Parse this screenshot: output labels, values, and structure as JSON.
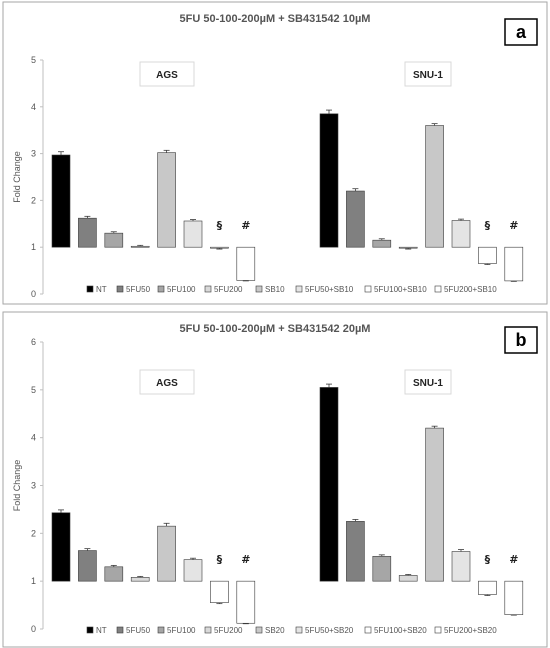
{
  "chart_data": [
    {
      "type": "bar",
      "title": "5FU 50-100-200µM + SB431542 10µM",
      "panel_label": "a",
      "ylabel": "Fold Change",
      "ylim": [
        0,
        5
      ],
      "yticks": [
        "0",
        "1",
        "2",
        "3",
        "4",
        "5"
      ],
      "baseline": 1,
      "grid": false,
      "legend_position": "bottom",
      "groups": [
        "AGS",
        "SNU-1"
      ],
      "series": [
        {
          "name": "NT",
          "color": "#000000",
          "values": [
            2.97,
            3.85
          ],
          "errors": [
            0.07,
            0.08
          ]
        },
        {
          "name": "5FU50",
          "color": "#808080",
          "values": [
            1.62,
            2.2
          ],
          "errors": [
            0.04,
            0.05
          ]
        },
        {
          "name": "5FU100",
          "color": "#a6a6a6",
          "values": [
            1.3,
            1.15
          ],
          "errors": [
            0.03,
            0.03
          ]
        },
        {
          "name": "5FU200",
          "color": "#d9d9d9",
          "values": [
            1.02,
            0.98
          ],
          "errors": [
            0.02,
            0.02
          ]
        },
        {
          "name": "SB10",
          "color": "#c8c8c8",
          "values": [
            3.02,
            3.6
          ],
          "errors": [
            0.05,
            0.04
          ]
        },
        {
          "name": "5FU50+SB10",
          "color": "#e4e4e4",
          "values": [
            1.56,
            1.57
          ],
          "errors": [
            0.03,
            0.03
          ]
        },
        {
          "name": "5FU100+SB10",
          "color": "#ffffff",
          "values": [
            0.98,
            0.65
          ],
          "errors": [
            0.02,
            0.02
          ]
        },
        {
          "name": "5FU200+SB10",
          "color": "#ffffff",
          "values": [
            0.29,
            0.28
          ],
          "errors": [
            0.01,
            0.01
          ]
        }
      ],
      "annotations": [
        {
          "text": "§",
          "series_index": 6
        },
        {
          "text": "#",
          "series_index": 7
        }
      ]
    },
    {
      "type": "bar",
      "title": "5FU 50-100-200µM + SB431542 20µM",
      "panel_label": "b",
      "ylabel": "Fold Change",
      "ylim": [
        0,
        6
      ],
      "yticks": [
        "0",
        "1",
        "2",
        "3",
        "4",
        "5",
        "6"
      ],
      "baseline": 1,
      "grid": false,
      "legend_position": "bottom",
      "groups": [
        "AGS",
        "SNU-1"
      ],
      "series": [
        {
          "name": "NT",
          "color": "#000000",
          "values": [
            2.43,
            5.05
          ],
          "errors": [
            0.06,
            0.07
          ]
        },
        {
          "name": "5FU50",
          "color": "#808080",
          "values": [
            1.64,
            2.25
          ],
          "errors": [
            0.04,
            0.04
          ]
        },
        {
          "name": "5FU100",
          "color": "#a6a6a6",
          "values": [
            1.3,
            1.52
          ],
          "errors": [
            0.03,
            0.03
          ]
        },
        {
          "name": "5FU200",
          "color": "#d9d9d9",
          "values": [
            1.08,
            1.12
          ],
          "errors": [
            0.02,
            0.02
          ]
        },
        {
          "name": "SB20",
          "color": "#c8c8c8",
          "values": [
            2.15,
            4.2
          ],
          "errors": [
            0.06,
            0.04
          ]
        },
        {
          "name": "5FU50+SB20",
          "color": "#e4e4e4",
          "values": [
            1.45,
            1.62
          ],
          "errors": [
            0.03,
            0.04
          ]
        },
        {
          "name": "5FU100+SB20",
          "color": "#ffffff",
          "values": [
            0.55,
            0.72
          ],
          "errors": [
            0.02,
            0.02
          ]
        },
        {
          "name": "5FU200+SB20",
          "color": "#ffffff",
          "values": [
            0.12,
            0.3
          ],
          "errors": [
            0.01,
            0.01
          ]
        }
      ],
      "annotations": [
        {
          "text": "§",
          "series_index": 6
        },
        {
          "text": "#",
          "series_index": 7
        }
      ]
    }
  ]
}
